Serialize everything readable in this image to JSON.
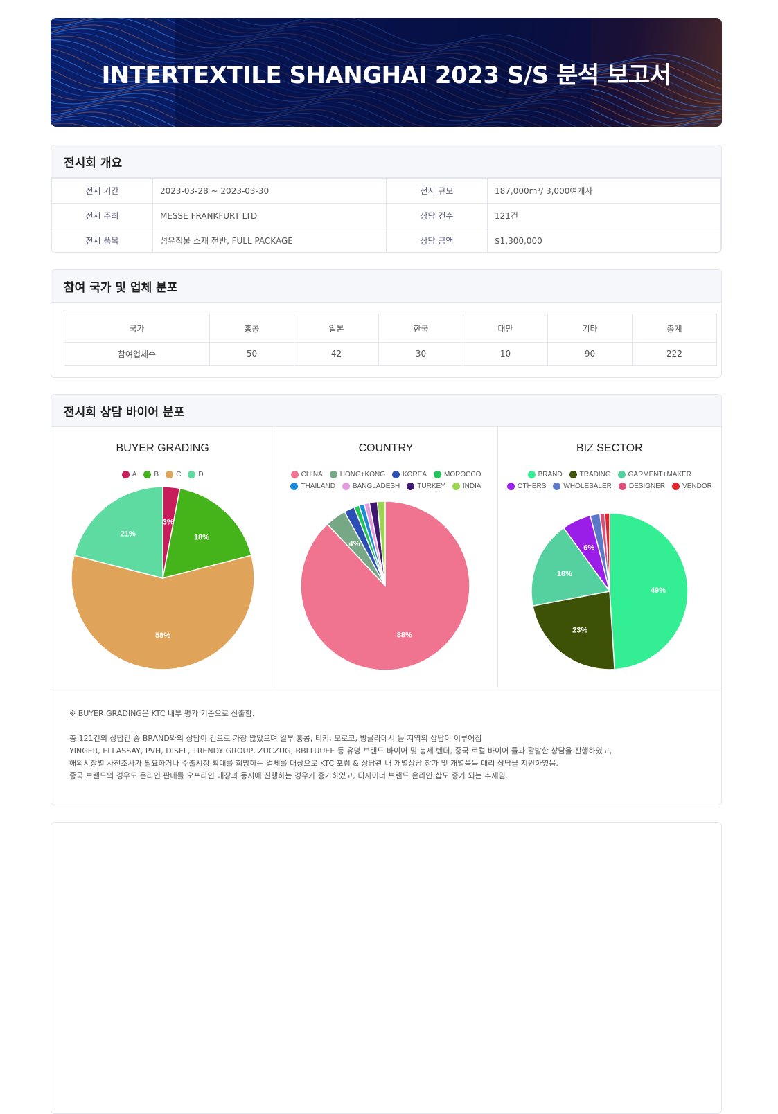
{
  "banner": {
    "title": "INTERTEXTILE SHANGHAI 2023 S/S 분석 보고서"
  },
  "overview": {
    "heading": "전시회 개요",
    "rows": [
      {
        "l1": "전시 기간",
        "v1": "2023-03-28 ~ 2023-03-30",
        "l2": "전시 규모",
        "v2": "187,000m²/ 3,000여개사"
      },
      {
        "l1": "전시 주최",
        "v1": "MESSE FRANKFURT LTD",
        "l2": "상담 건수",
        "v2": "121건"
      },
      {
        "l1": "전시 품목",
        "v1": "섬유직물 소재 전반, FULL PACKAGE",
        "l2": "상담 금액",
        "v2": "$1,300,000"
      }
    ]
  },
  "participation": {
    "heading": "참여 국가 및 업체 분포",
    "header": [
      "국가",
      "홍콩",
      "일본",
      "한국",
      "대만",
      "기타",
      "총계"
    ],
    "row": [
      "참여업체수",
      "50",
      "42",
      "30",
      "10",
      "90",
      "222"
    ]
  },
  "buyers": {
    "heading": "전시회 상담 바이어 분포",
    "note1": "※ BUYER GRADING은 KTC 내부 평가 기준으로 산출함.",
    "lines": [
      "총 121건의 상담건 중 BRAND와의 상담이 건으로 가장 많았으며 일부 홍콩, 티키, 모로코, 방글라데시 등 지역의 상담이 이루어짐",
      "YINGER, ELLASSAY, PVH, DISEL, TRENDY GROUP, ZUCZUG, BBLLUUEE 등 유명 브랜드 바이어 및 봉제 벤더, 중국 로컬 바이어 들과 활발한 상담을 진행하였고,",
      "해외시장별 사전조사가 필요하거나 수출시장 확대를 희망하는 업체를 대상으로 KTC 포럼 & 상담관 내 개별상담 참가 및 개별품목 대리 상담을 지원하였음.",
      "중국 브랜드의 경우도 온라인 판매를 오프라인 매장과 동시에 진행하는 경우가 증가하였고, 디자이너 브랜드 온라인 샵도 증가 되는 추세임."
    ]
  },
  "chart_data": [
    {
      "type": "pie",
      "title": "BUYER GRADING",
      "categories": [
        "A",
        "B",
        "C",
        "D"
      ],
      "values": [
        3,
        18,
        58,
        21
      ],
      "labels": [
        "3%",
        "18%",
        "58%",
        "21%"
      ],
      "colors": [
        "#c81d5b",
        "#45b31a",
        "#e0a35a",
        "#5ddba0"
      ],
      "start_angle_deg": 0,
      "legend": "top"
    },
    {
      "type": "pie",
      "title": "COUNTRY",
      "categories": [
        "CHINA",
        "HONG+KONG",
        "KOREA",
        "MOROCCO",
        "THAILAND",
        "BANGLADESH",
        "TURKEY",
        "INDIA"
      ],
      "values": [
        88,
        4,
        2,
        1,
        1,
        1,
        1.5,
        1.5
      ],
      "labels": [
        "88%",
        "4%",
        "",
        "",
        "",
        "",
        "",
        ""
      ],
      "colors": [
        "#f07390",
        "#77a886",
        "#2b4fb4",
        "#22c45a",
        "#1c8ad6",
        "#e39be0",
        "#3f176e",
        "#9ad452"
      ],
      "start_angle_deg": 0,
      "legend": "top"
    },
    {
      "type": "pie",
      "title": "BIZ SECTOR",
      "categories": [
        "BRAND",
        "TRADING",
        "GARMENT+MAKER",
        "OTHERS",
        "WHOLESALER",
        "DESIGNER",
        "VENDOR"
      ],
      "values": [
        49,
        23,
        18,
        6,
        2,
        1,
        1
      ],
      "labels": [
        "49%",
        "23%",
        "18%",
        "6%",
        "",
        "",
        ""
      ],
      "colors": [
        "#33ee92",
        "#3d5206",
        "#55d1a0",
        "#9a1de8",
        "#5c78c8",
        "#dc4d78",
        "#e0262d"
      ],
      "start_angle_deg": 0,
      "legend": "top"
    }
  ]
}
